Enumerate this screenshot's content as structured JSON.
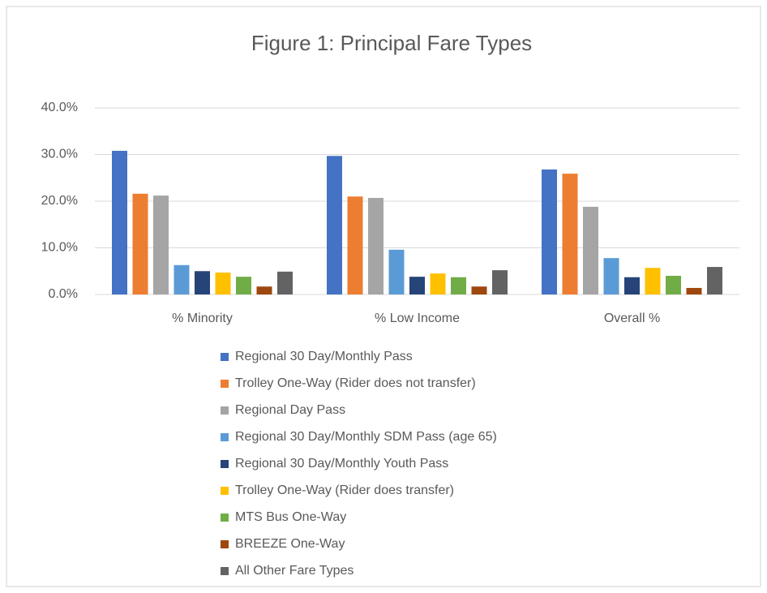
{
  "chart_data": {
    "type": "bar",
    "title": "Figure 1:  Principal Fare Types",
    "categories": [
      "% Minority",
      "% Low Income",
      "Overall %"
    ],
    "series": [
      {
        "name": "Regional 30 Day/Monthly Pass",
        "color": "#4472c4",
        "values": [
          30.8,
          29.7,
          26.8
        ]
      },
      {
        "name": "Trolley One-Way (Rider does not transfer)",
        "color": "#ed7d31",
        "values": [
          21.6,
          21.0,
          25.9
        ]
      },
      {
        "name": "Regional Day Pass",
        "color": "#a5a5a5",
        "values": [
          21.2,
          20.7,
          18.8
        ]
      },
      {
        "name": "Regional 30 Day/Monthly SDM Pass (age 65)",
        "color": "#5b9bd5",
        "values": [
          6.3,
          9.6,
          7.8
        ]
      },
      {
        "name": "Regional 30 Day/Monthly Youth Pass",
        "color": "#264478",
        "values": [
          5.0,
          3.8,
          3.7
        ]
      },
      {
        "name": "Trolley One-Way (Rider does transfer)",
        "color": "#ffc000",
        "values": [
          4.7,
          4.5,
          5.7
        ]
      },
      {
        "name": "MTS Bus One-Way",
        "color": "#70ad47",
        "values": [
          3.8,
          3.7,
          4.0
        ]
      },
      {
        "name": "BREEZE One-Way",
        "color": "#9e480e",
        "values": [
          1.7,
          1.7,
          1.4
        ]
      },
      {
        "name": "All Other Fare Types",
        "color": "#636363",
        "values": [
          4.9,
          5.2,
          5.9
        ]
      }
    ],
    "ylim": [
      0,
      40
    ],
    "yticks": [
      {
        "value": 0,
        "label": "0.0%"
      },
      {
        "value": 10,
        "label": "10.0%"
      },
      {
        "value": 20,
        "label": "20.0%"
      },
      {
        "value": 30,
        "label": "30.0%"
      },
      {
        "value": 40,
        "label": "40.0%"
      }
    ],
    "grid": true,
    "legend": "bottom"
  }
}
